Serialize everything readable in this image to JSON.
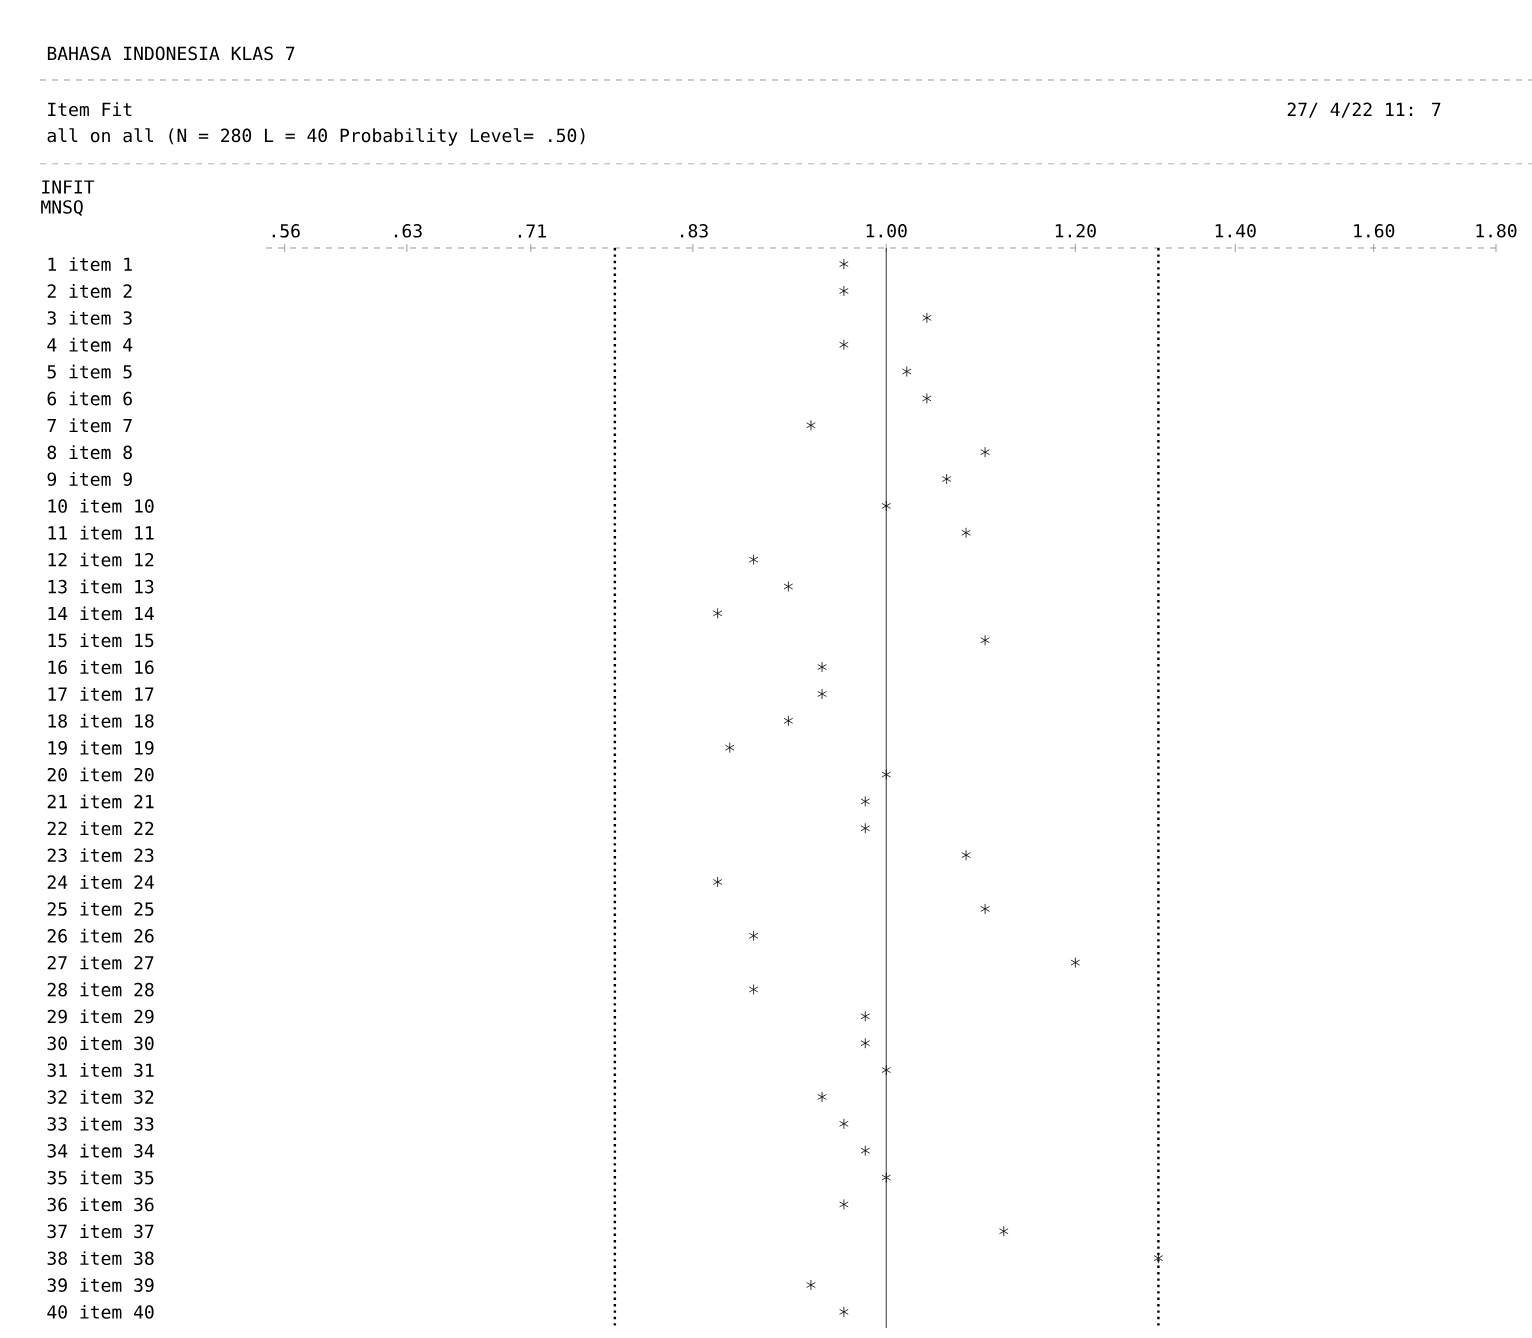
{
  "chart_data": {
    "type": "scatter",
    "orientation": "horizontal",
    "title": "BAHASA INDONESIA KLAS 7",
    "subtitle": "Item Fit",
    "annotations": [
      "all on all (N = 280 L = 40 Probability Level= .50)",
      "27/ 4/22 11: 7"
    ],
    "xlabel": "INFIT MNSQ",
    "categories": [
      "1 item 1",
      "2 item 2",
      "3 item 3",
      "4 item 4",
      "5 item 5",
      "6 item 6",
      "7 item 7",
      "8 item 8",
      "9 item 9",
      "10 item 10",
      "11 item 11",
      "12 item 12",
      "13 item 13",
      "14 item 14",
      "15 item 15",
      "16 item 16",
      "17 item 17",
      "18 item 18",
      "19 item 19",
      "20 item 20",
      "21 item 21",
      "22 item 22",
      "23 item 23",
      "24 item 24",
      "25 item 25",
      "26 item 26",
      "27 item 27",
      "28 item 28",
      "29 item 29",
      "30 item 30",
      "31 item 31",
      "32 item 32",
      "33 item 33",
      "34 item 34",
      "35 item 35",
      "36 item 36",
      "37 item 37",
      "38 item 38",
      "39 item 39",
      "40 item 40"
    ],
    "values": [
      0.96,
      0.96,
      1.04,
      0.96,
      1.02,
      1.04,
      0.93,
      1.1,
      1.06,
      1.0,
      1.08,
      0.88,
      0.91,
      0.85,
      1.1,
      0.94,
      0.94,
      0.91,
      0.86,
      1.0,
      0.98,
      0.98,
      1.08,
      0.85,
      1.1,
      0.88,
      1.2,
      0.88,
      0.98,
      0.98,
      1.0,
      0.94,
      0.96,
      0.98,
      1.0,
      0.96,
      1.12,
      1.3,
      0.93,
      0.96
    ],
    "color": "#000000",
    "marker": "cross",
    "log": "x",
    "xlim": [
      0.55,
      1.8
    ],
    "xticks": [
      {
        "value": 0.56,
        "label": ".56"
      },
      {
        "value": 0.63,
        "label": ".63"
      },
      {
        "value": 0.71,
        "label": ".71"
      },
      {
        "value": 0.83,
        "label": ".83"
      },
      {
        "value": 1.0,
        "label": "1.00"
      },
      {
        "value": 1.2,
        "label": "1.20"
      },
      {
        "value": 1.4,
        "label": "1.40"
      },
      {
        "value": 1.6,
        "label": "1.60"
      },
      {
        "value": 1.8,
        "label": "1.80"
      }
    ],
    "ref_lines": [
      {
        "axis": "x",
        "value": 0.77,
        "line_style": "dotted"
      },
      {
        "axis": "x",
        "value": 1.0,
        "line_style": "solid"
      },
      {
        "axis": "x",
        "value": 1.3,
        "line_style": "dotted"
      }
    ]
  }
}
